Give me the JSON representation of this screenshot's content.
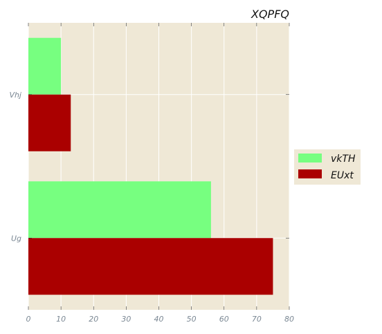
{
  "chart_data": {
    "type": "bar",
    "orientation": "horizontal",
    "title": "XQPFQ",
    "categories": [
      "Vhj",
      "Ug"
    ],
    "series": [
      {
        "name": "vkTH",
        "values": [
          10,
          56
        ],
        "color": "#77ff80"
      },
      {
        "name": "EUxt",
        "values": [
          13,
          75
        ],
        "color": "#aa0000"
      }
    ],
    "xlim": [
      0,
      80
    ],
    "xticks": [
      0,
      10,
      20,
      30,
      40,
      50,
      60,
      70,
      80
    ],
    "grid": true,
    "legend_position": "right",
    "background_color": "#efe8d6",
    "grid_color": "#ffffff"
  }
}
